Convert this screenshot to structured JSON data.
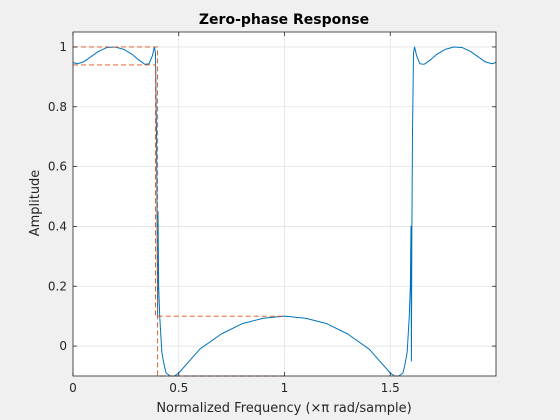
{
  "chart_data": {
    "type": "line",
    "title": "Zero-phase Response",
    "xlabel": "Normalized Frequency (×π rad/sample)",
    "ylabel": "Amplitude",
    "xlim": [
      0,
      2
    ],
    "ylim": [
      -0.1,
      1.05
    ],
    "grid": true,
    "legend": "none",
    "x_ticks": [
      0,
      0.5,
      1,
      1.5
    ],
    "x_tick_labels": [
      "0",
      "0.5",
      "1",
      "1.5"
    ],
    "y_ticks": [
      0,
      0.2,
      0.4,
      0.6,
      0.8,
      1
    ],
    "y_tick_labels": [
      "0",
      "0.2",
      "0.4",
      "0.6",
      "0.8",
      "1"
    ],
    "colors": {
      "response": "#0072bd",
      "spec": "#d95319",
      "grid": "#e3e3e3"
    },
    "series": [
      {
        "style": "solid",
        "points": [
          [
            0,
            0.948
          ],
          [
            0.02,
            0.944
          ],
          [
            0.05,
            0.95
          ],
          [
            0.08,
            0.965
          ],
          [
            0.12,
            0.985
          ],
          [
            0.16,
            0.998
          ],
          [
            0.2,
            1.0
          ],
          [
            0.24,
            0.992
          ],
          [
            0.28,
            0.975
          ],
          [
            0.31,
            0.957
          ],
          [
            0.34,
            0.942
          ],
          [
            0.36,
            0.944
          ],
          [
            0.375,
            0.97
          ],
          [
            0.385,
            1.0
          ],
          [
            0.39,
            0.98
          ],
          [
            0.395,
            0.7
          ],
          [
            0.398,
            0.35
          ],
          [
            0.4,
            0.1
          ],
          [
            0.402,
            0.45
          ],
          [
            0.405,
            0.2
          ],
          [
            0.41,
            0.1
          ],
          [
            0.415,
            0.04
          ],
          [
            0.42,
            -0.02
          ],
          [
            0.43,
            -0.06
          ],
          [
            0.44,
            -0.09
          ],
          [
            0.46,
            -0.1
          ],
          [
            0.48,
            -0.1
          ],
          [
            0.5,
            -0.09
          ],
          [
            0.55,
            -0.05
          ],
          [
            0.6,
            -0.01
          ],
          [
            0.7,
            0.04
          ],
          [
            0.8,
            0.075
          ],
          [
            0.9,
            0.093
          ],
          [
            1.0,
            0.1
          ],
          [
            1.1,
            0.093
          ],
          [
            1.2,
            0.075
          ],
          [
            1.3,
            0.04
          ],
          [
            1.4,
            -0.01
          ],
          [
            1.45,
            -0.05
          ],
          [
            1.5,
            -0.09
          ],
          [
            1.52,
            -0.1
          ],
          [
            1.54,
            -0.1
          ],
          [
            1.56,
            -0.09
          ],
          [
            1.57,
            -0.06
          ],
          [
            1.58,
            -0.02
          ],
          [
            1.585,
            0.04
          ],
          [
            1.59,
            0.1
          ],
          [
            1.595,
            0.2
          ],
          [
            1.598,
            0.4
          ],
          [
            1.6,
            -0.05
          ],
          [
            1.602,
            0.35
          ],
          [
            1.605,
            0.7
          ],
          [
            1.61,
            0.98
          ],
          [
            1.615,
            1.0
          ],
          [
            1.625,
            0.97
          ],
          [
            1.64,
            0.944
          ],
          [
            1.66,
            0.942
          ],
          [
            1.69,
            0.957
          ],
          [
            1.72,
            0.975
          ],
          [
            1.76,
            0.992
          ],
          [
            1.8,
            1.0
          ],
          [
            1.84,
            0.998
          ],
          [
            1.88,
            0.985
          ],
          [
            1.92,
            0.965
          ],
          [
            1.95,
            0.95
          ],
          [
            1.98,
            0.944
          ],
          [
            2.0,
            0.948
          ]
        ]
      },
      {
        "style": "dashed",
        "points": [
          [
            0,
            1
          ],
          [
            0.4,
            1
          ],
          [
            0.4,
            -0.1
          ],
          [
            1,
            -0.1
          ]
        ]
      },
      {
        "style": "dashed",
        "points": [
          [
            0,
            0.94
          ],
          [
            0.39,
            0.94
          ],
          [
            0.39,
            0.1
          ],
          [
            1,
            0.1
          ]
        ]
      }
    ]
  }
}
